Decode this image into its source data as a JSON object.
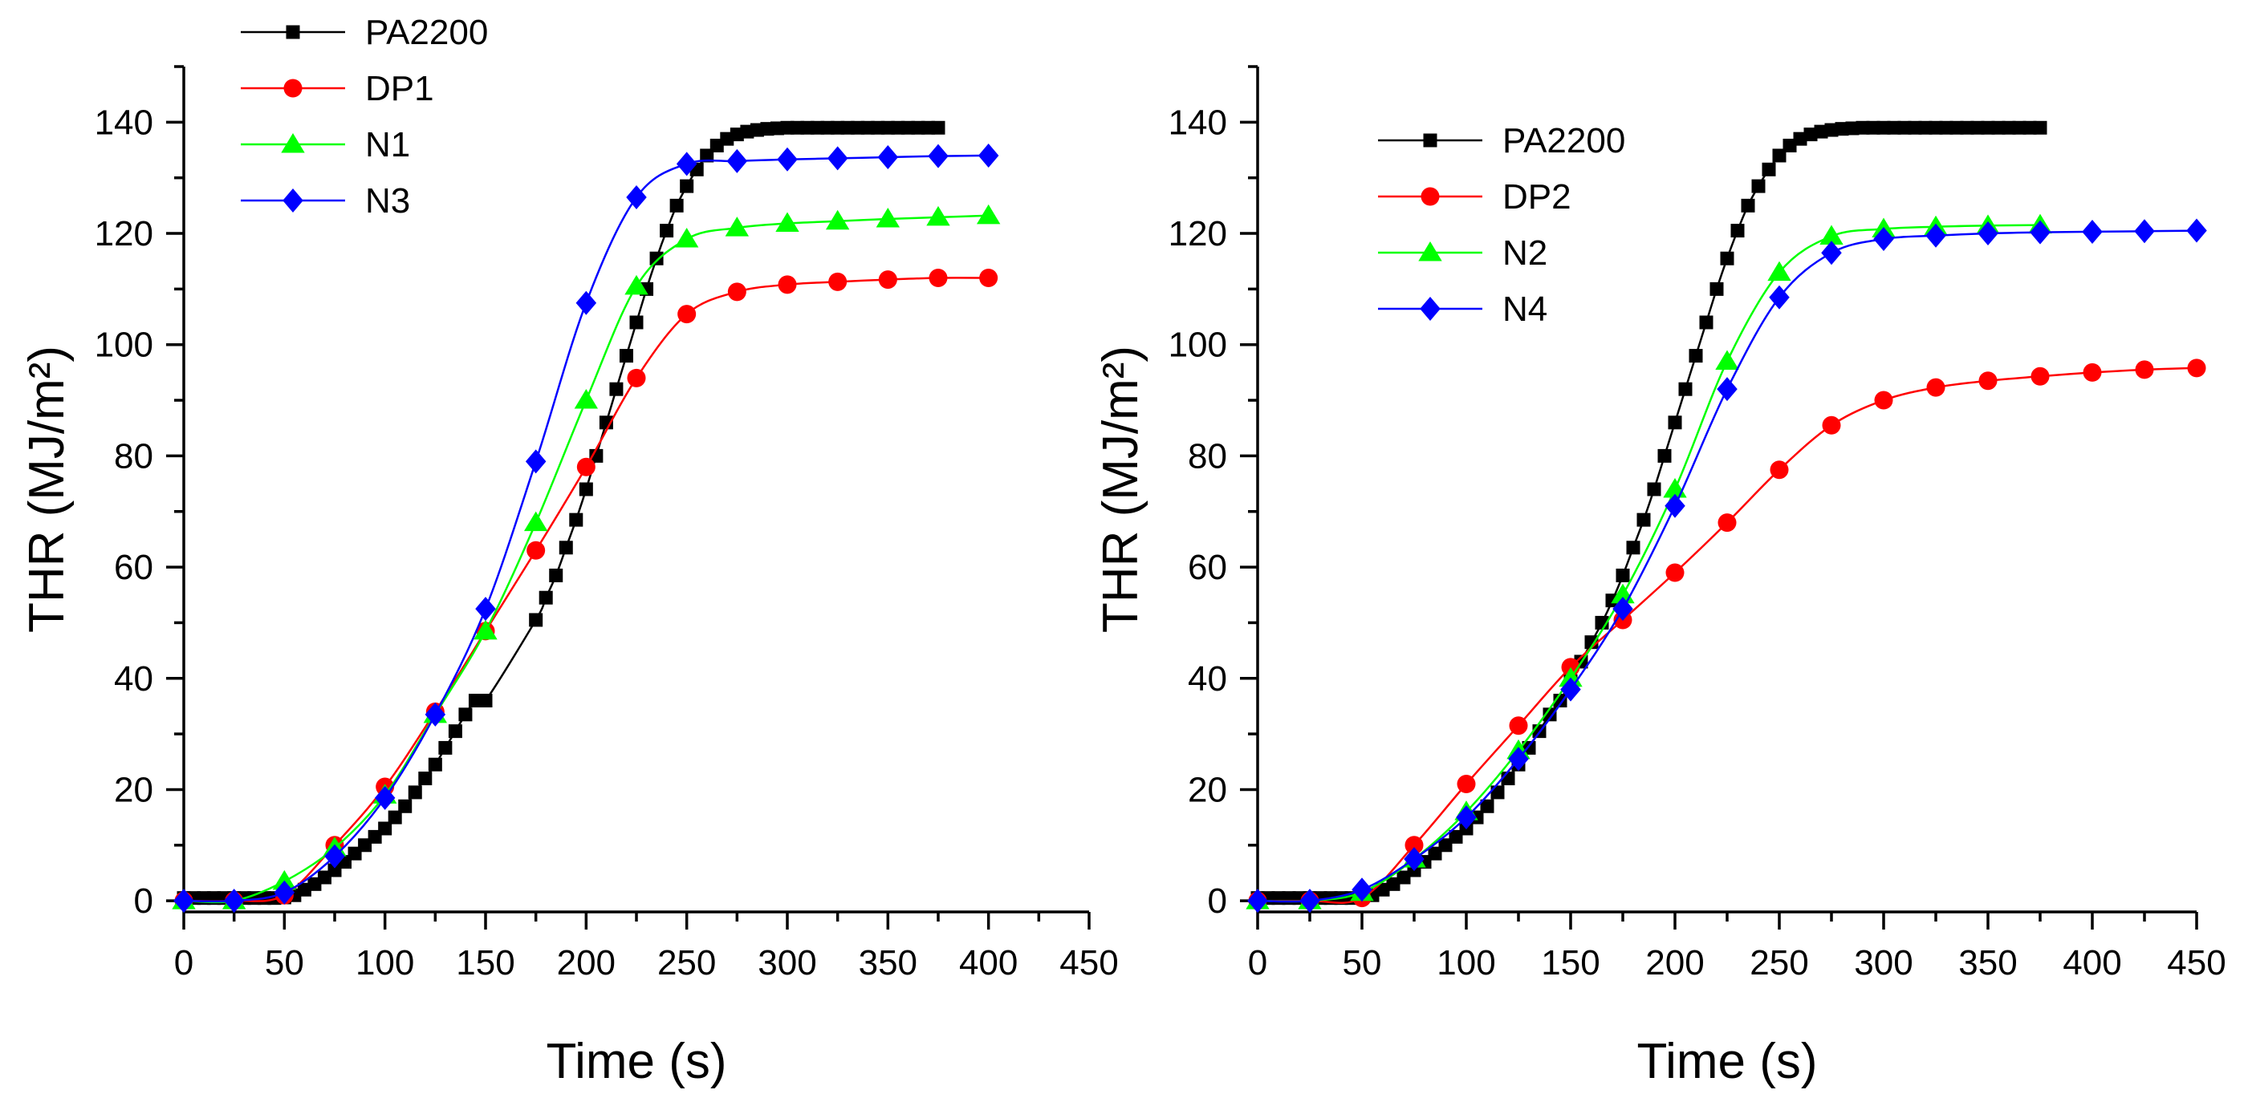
{
  "chart_data": [
    {
      "type": "line",
      "title": "",
      "xlabel": "Time (s)",
      "ylabel": "THR (MJ/m²)",
      "xlim": [
        0,
        450
      ],
      "ylim": [
        -2,
        150
      ],
      "xticks": [
        0,
        50,
        100,
        150,
        200,
        250,
        300,
        350,
        400,
        450
      ],
      "yticks": [
        0,
        20,
        40,
        60,
        80,
        100,
        120,
        140
      ],
      "grid": false,
      "legend_position": "top-left",
      "series": [
        {
          "name": "PA2200",
          "color": "#000000",
          "marker": "square",
          "x": [
            0,
            5,
            10,
            15,
            20,
            25,
            30,
            35,
            40,
            45,
            50,
            55,
            60,
            65,
            70,
            75,
            80,
            85,
            90,
            95,
            100,
            105,
            110,
            115,
            120,
            125,
            130,
            135,
            140,
            145,
            150,
            175,
            180,
            185,
            190,
            195,
            200,
            205,
            210,
            215,
            220,
            225,
            230,
            235,
            240,
            245,
            250,
            255,
            260,
            265,
            270,
            275,
            280,
            285,
            290,
            295,
            300,
            305,
            310,
            315,
            320,
            325,
            330,
            335,
            340,
            345,
            350,
            355,
            360,
            365,
            370,
            375
          ],
          "y": [
            0.5,
            0.5,
            0.5,
            0.5,
            0.5,
            0.5,
            0.5,
            0.5,
            0.5,
            0.5,
            0.6,
            1.0,
            2.0,
            3.0,
            4.2,
            5.5,
            7.0,
            8.5,
            10.0,
            11.5,
            13.0,
            15.0,
            17.0,
            19.5,
            22.0,
            24.5,
            27.5,
            30.5,
            33.5,
            36.0,
            36.0,
            50.5,
            54.5,
            58.5,
            63.5,
            68.5,
            74.0,
            80.0,
            86.0,
            92.0,
            98.0,
            104.0,
            110.0,
            115.5,
            120.5,
            125.0,
            128.5,
            131.5,
            134.0,
            135.8,
            137.0,
            137.8,
            138.3,
            138.6,
            138.8,
            138.9,
            139.0,
            139.0,
            139.0,
            139.0,
            139.0,
            139.0,
            139.0,
            139.0,
            139.0,
            139.0,
            139.0,
            139.0,
            139.0,
            139.0,
            139.0,
            139.0
          ]
        },
        {
          "name": "DP1",
          "color": "#ff0000",
          "marker": "circle",
          "x": [
            0,
            25,
            50,
            75,
            100,
            125,
            150,
            175,
            200,
            225,
            250,
            275,
            300,
            325,
            350,
            375,
            400
          ],
          "y": [
            0,
            0,
            1,
            10,
            20.5,
            34,
            48.5,
            63,
            78,
            94,
            105.5,
            109.5,
            110.8,
            111.3,
            111.7,
            112,
            112
          ]
        },
        {
          "name": "N1",
          "color": "#00ff00",
          "marker": "triangle",
          "x": [
            0,
            25,
            50,
            75,
            100,
            125,
            150,
            175,
            200,
            225,
            250,
            275,
            300,
            325,
            350,
            375,
            400
          ],
          "y": [
            0,
            0,
            3.5,
            9.5,
            19,
            33.5,
            48.5,
            68,
            90,
            110.5,
            119,
            121,
            121.8,
            122.2,
            122.6,
            122.9,
            123.2
          ]
        },
        {
          "name": "N3",
          "color": "#0000ff",
          "marker": "diamond",
          "x": [
            0,
            25,
            50,
            75,
            100,
            125,
            150,
            175,
            200,
            225,
            250,
            275,
            300,
            325,
            350,
            375,
            400
          ],
          "y": [
            0,
            0,
            1.5,
            8,
            18.5,
            33.5,
            52.5,
            79,
            107.5,
            126.5,
            132.5,
            133,
            133.3,
            133.5,
            133.7,
            133.9,
            134
          ]
        }
      ]
    },
    {
      "type": "line",
      "title": "",
      "xlabel": "Time (s)",
      "ylabel": "THR (MJ/m²)",
      "xlim": [
        0,
        450
      ],
      "ylim": [
        -2,
        150
      ],
      "xticks": [
        0,
        50,
        100,
        150,
        200,
        250,
        300,
        350,
        400,
        450
      ],
      "yticks": [
        0,
        20,
        40,
        60,
        80,
        100,
        120,
        140
      ],
      "grid": false,
      "legend_position": "top-left",
      "series": [
        {
          "name": "PA2200",
          "color": "#000000",
          "marker": "square",
          "x": [
            0,
            5,
            10,
            15,
            20,
            25,
            30,
            35,
            40,
            45,
            50,
            55,
            60,
            65,
            70,
            75,
            80,
            85,
            90,
            95,
            100,
            105,
            110,
            115,
            120,
            125,
            130,
            135,
            140,
            145,
            150,
            155,
            160,
            165,
            170,
            175,
            180,
            185,
            190,
            195,
            200,
            205,
            210,
            215,
            220,
            225,
            230,
            235,
            240,
            245,
            250,
            255,
            260,
            265,
            270,
            275,
            280,
            285,
            290,
            295,
            300,
            305,
            310,
            315,
            320,
            325,
            330,
            335,
            340,
            345,
            350,
            355,
            360,
            365,
            370,
            375
          ],
          "y": [
            0.5,
            0.5,
            0.5,
            0.5,
            0.5,
            0.5,
            0.5,
            0.5,
            0.5,
            0.5,
            0.6,
            1.0,
            2.0,
            3.0,
            4.2,
            5.5,
            7.0,
            8.5,
            10.0,
            11.5,
            13.0,
            15.0,
            17.0,
            19.5,
            22.0,
            24.5,
            27.5,
            30.5,
            33.5,
            36.0,
            39.5,
            43.0,
            46.5,
            50.0,
            54.0,
            58.5,
            63.5,
            68.5,
            74.0,
            80.0,
            86.0,
            92.0,
            98.0,
            104.0,
            110.0,
            115.5,
            120.5,
            125.0,
            128.5,
            131.5,
            134.0,
            135.8,
            137.0,
            137.8,
            138.3,
            138.6,
            138.8,
            138.9,
            139.0,
            139.0,
            139.0,
            139.0,
            139.0,
            139.0,
            139.0,
            139.0,
            139.0,
            139.0,
            139.0,
            139.0,
            139.0,
            139.0,
            139.0,
            139.0,
            139.0,
            139.0
          ],
          "x_offset_note": ""
        },
        {
          "name": "DP2",
          "color": "#ff0000",
          "marker": "circle",
          "x": [
            0,
            25,
            50,
            75,
            100,
            125,
            150,
            175,
            200,
            225,
            250,
            275,
            300,
            325,
            350,
            375,
            400,
            425,
            450
          ],
          "y": [
            0,
            0,
            0.5,
            10,
            21,
            31.5,
            42,
            50.5,
            59,
            68,
            77.5,
            85.5,
            90,
            92.3,
            93.5,
            94.3,
            95,
            95.5,
            95.8
          ]
        },
        {
          "name": "N2",
          "color": "#00ff00",
          "marker": "triangle",
          "x": [
            0,
            25,
            50,
            75,
            100,
            125,
            150,
            175,
            200,
            225,
            250,
            275,
            300,
            325,
            350,
            375
          ],
          "y": [
            0,
            0,
            1.5,
            7.5,
            16,
            27,
            40,
            55,
            74,
            97,
            113,
            119.5,
            120.8,
            121.2,
            121.4,
            121.5
          ]
        },
        {
          "name": "N4",
          "color": "#0000ff",
          "marker": "diamond",
          "x": [
            0,
            25,
            50,
            75,
            100,
            125,
            150,
            175,
            200,
            225,
            250,
            275,
            300,
            325,
            350,
            375,
            400,
            425,
            450
          ],
          "y": [
            0,
            0,
            2,
            7.5,
            15,
            25.5,
            38,
            52.5,
            71,
            92,
            108.5,
            116.5,
            119,
            119.6,
            120,
            120.2,
            120.3,
            120.4,
            120.5
          ]
        }
      ]
    }
  ]
}
